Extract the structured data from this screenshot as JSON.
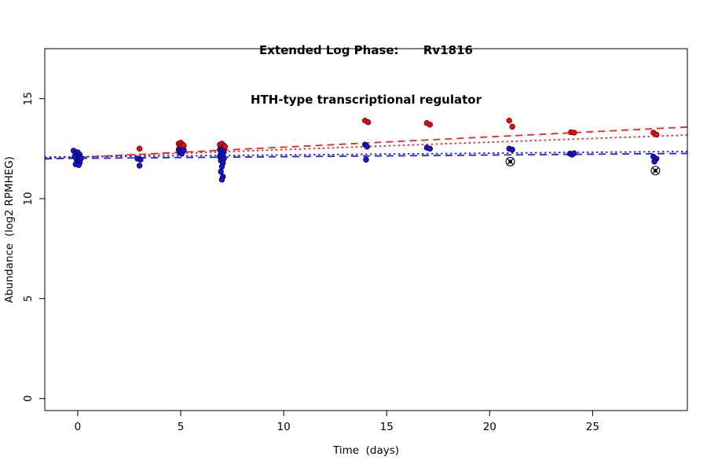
{
  "chart_data": {
    "type": "scatter",
    "title_line1": "Extended Log Phase:      Rv1816",
    "title_line2": "HTH-type transcriptional regulator",
    "xlabel": "Time  (days)",
    "ylabel": "Abundance  (log2 RPMHEG)",
    "xlim": [
      -1.6,
      29.6
    ],
    "ylim": [
      -0.6,
      17.5
    ],
    "xticks": [
      0,
      5,
      10,
      15,
      20,
      25
    ],
    "yticks": [
      0,
      5,
      10,
      15
    ],
    "grid": false,
    "legend": "none",
    "series": [
      {
        "name": "red-condition",
        "color": "#dd1111",
        "edge": "#700000",
        "points": [
          [
            -0.1,
            12.3
          ],
          [
            0.1,
            12.05
          ],
          [
            0.0,
            11.8
          ],
          [
            3.0,
            12.5
          ],
          [
            4.9,
            12.75
          ],
          [
            5.0,
            12.8
          ],
          [
            5.1,
            12.7
          ],
          [
            5.0,
            12.6
          ],
          [
            5.15,
            12.65
          ],
          [
            4.95,
            12.55
          ],
          [
            6.9,
            12.7
          ],
          [
            7.0,
            12.75
          ],
          [
            7.1,
            12.65
          ],
          [
            6.95,
            12.55
          ],
          [
            7.05,
            12.5
          ],
          [
            7.15,
            12.6
          ],
          [
            13.95,
            13.9
          ],
          [
            14.1,
            13.82
          ],
          [
            16.95,
            13.78
          ],
          [
            17.1,
            13.7
          ],
          [
            20.95,
            13.9
          ],
          [
            21.1,
            13.6
          ],
          [
            23.95,
            13.32
          ],
          [
            24.1,
            13.3
          ],
          [
            27.95,
            13.3
          ],
          [
            28.1,
            13.2
          ]
        ]
      },
      {
        "name": "blue-condition",
        "color": "#1717c9",
        "edge": "#000050",
        "points": [
          [
            -0.2,
            12.4
          ],
          [
            -0.1,
            12.25
          ],
          [
            0.0,
            12.32
          ],
          [
            0.1,
            12.2
          ],
          [
            -0.15,
            12.1
          ],
          [
            0.05,
            12.05
          ],
          [
            0.15,
            12.0
          ],
          [
            -0.05,
            11.95
          ],
          [
            0.0,
            11.85
          ],
          [
            0.1,
            11.8
          ],
          [
            -0.1,
            11.72
          ],
          [
            0.05,
            11.68
          ],
          [
            2.9,
            12.0
          ],
          [
            3.05,
            11.95
          ],
          [
            3.0,
            11.65
          ],
          [
            4.9,
            12.45
          ],
          [
            5.0,
            12.4
          ],
          [
            5.1,
            12.35
          ],
          [
            4.95,
            12.3
          ],
          [
            5.05,
            12.25
          ],
          [
            5.15,
            12.42
          ],
          [
            6.9,
            12.45
          ],
          [
            7.0,
            12.4
          ],
          [
            7.1,
            12.35
          ],
          [
            6.95,
            12.25
          ],
          [
            7.05,
            12.2
          ],
          [
            6.9,
            12.1
          ],
          [
            7.0,
            12.05
          ],
          [
            7.1,
            12.0
          ],
          [
            6.95,
            11.9
          ],
          [
            7.05,
            11.78
          ],
          [
            7.0,
            11.6
          ],
          [
            6.95,
            11.35
          ],
          [
            7.05,
            11.1
          ],
          [
            7.0,
            10.95
          ],
          [
            13.95,
            12.7
          ],
          [
            14.05,
            12.6
          ],
          [
            14.0,
            11.95
          ],
          [
            16.95,
            12.55
          ],
          [
            17.1,
            12.5
          ],
          [
            20.95,
            12.5
          ],
          [
            21.1,
            12.45
          ],
          [
            23.9,
            12.25
          ],
          [
            24.0,
            12.2
          ],
          [
            24.1,
            12.27
          ],
          [
            27.95,
            12.1
          ],
          [
            28.1,
            12.0
          ],
          [
            28.0,
            11.85
          ]
        ]
      }
    ],
    "trend_lines": [
      {
        "series": "red-condition",
        "style": "dashed",
        "color": "#ee2222",
        "dash": "9,6",
        "x": [
          -1.6,
          29.6
        ],
        "y": [
          11.98,
          13.58
        ]
      },
      {
        "series": "red-condition",
        "style": "dotted",
        "color": "#ee2222",
        "dash": "2.5,3.5",
        "x": [
          -1.6,
          29.6
        ],
        "y": [
          12.02,
          13.18
        ]
      },
      {
        "series": "blue-condition",
        "style": "dashed",
        "color": "#2222ee",
        "dash": "9,6",
        "x": [
          -1.6,
          29.6
        ],
        "y": [
          12.0,
          12.26
        ]
      },
      {
        "series": "blue-condition",
        "style": "dotted",
        "color": "#2222ee",
        "dash": "2.5,3.5",
        "x": [
          -1.6,
          29.6
        ],
        "y": [
          12.08,
          12.36
        ]
      }
    ],
    "outlier_markers": [
      {
        "x": 21.0,
        "y": 11.85,
        "symbol": "circle-cross"
      },
      {
        "x": 28.05,
        "y": 11.4,
        "symbol": "circle-cross"
      }
    ]
  }
}
